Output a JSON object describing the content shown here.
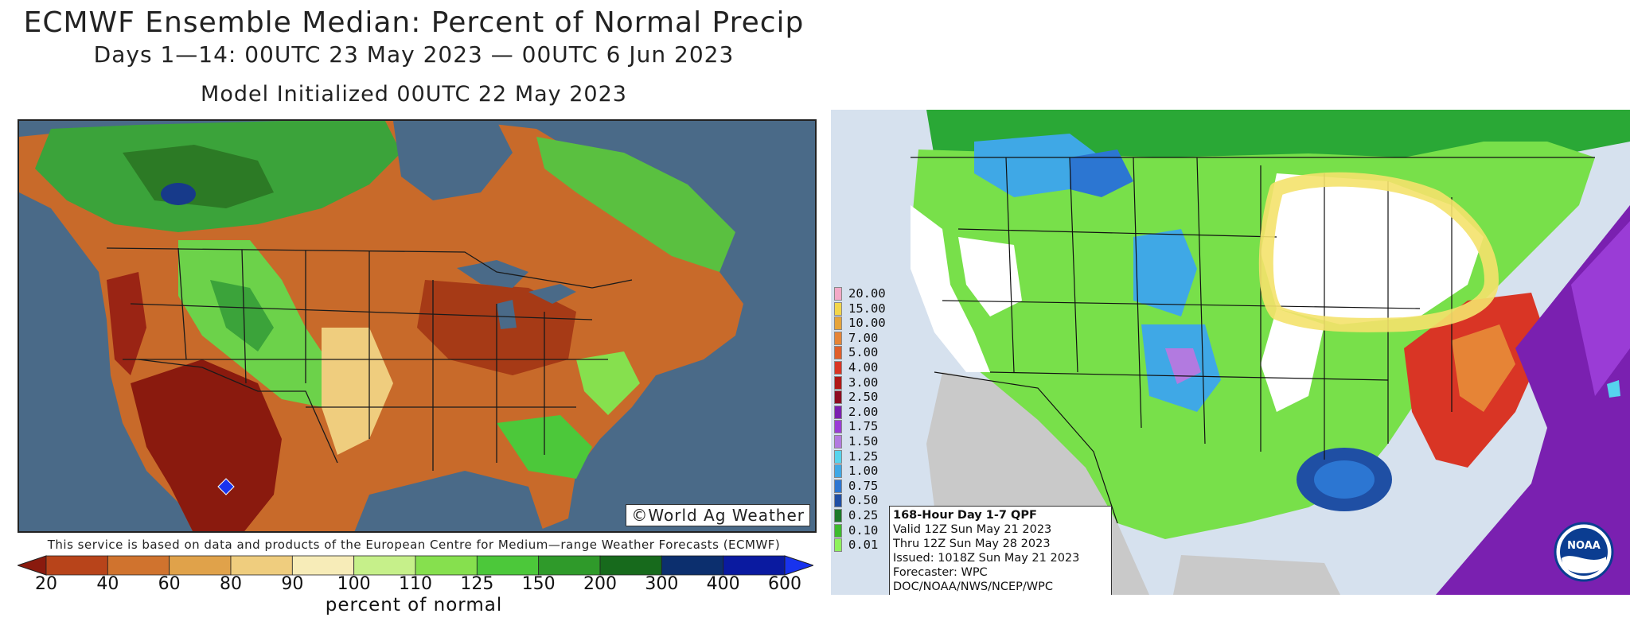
{
  "left_panel": {
    "title": "ECMWF Ensemble Median: Percent of Normal Precip",
    "subtitle": "Days 1—14: 00UTC 23 May 2023 — 00UTC 6 Jun 2023",
    "init": "Model Initialized 00UTC 22 May 2023",
    "credit": "©World Ag Weather",
    "service_note": "This service is based on data and products of the European Centre for Medium—range Weather Forecasts (ECMWF)",
    "colorbar": {
      "ticks": [
        "20",
        "40",
        "60",
        "80",
        "90",
        "100",
        "110",
        "125",
        "150",
        "200",
        "300",
        "400",
        "600"
      ],
      "colors": [
        "#8a1a0e",
        "#b8441a",
        "#d0732e",
        "#e0a24a",
        "#efcd7e",
        "#f7ecb8",
        "#c6f08a",
        "#86e04e",
        "#4cc83a",
        "#2f9a2a",
        "#176a1c",
        "#0c2f6e",
        "#0a1aa0",
        "#1833ee"
      ],
      "label": "percent of normal"
    }
  },
  "right_panel": {
    "legend": [
      {
        "value": "20.00",
        "color": "#f3a9c7"
      },
      {
        "value": "15.00",
        "color": "#f3d64a"
      },
      {
        "value": "10.00",
        "color": "#e6a43a"
      },
      {
        "value": "7.00",
        "color": "#e68436"
      },
      {
        "value": "5.00",
        "color": "#e05e2a"
      },
      {
        "value": "4.00",
        "color": "#d93525"
      },
      {
        "value": "3.00",
        "color": "#b01818"
      },
      {
        "value": "2.50",
        "color": "#8e0c22"
      },
      {
        "value": "2.00",
        "color": "#7a20b0"
      },
      {
        "value": "1.75",
        "color": "#9a3cd6"
      },
      {
        "value": "1.50",
        "color": "#b27ae0"
      },
      {
        "value": "1.25",
        "color": "#56d4ee"
      },
      {
        "value": "1.00",
        "color": "#3fa8e6"
      },
      {
        "value": "0.75",
        "color": "#2c76d2"
      },
      {
        "value": "0.50",
        "color": "#1f4fa4"
      },
      {
        "value": "0.25",
        "color": "#1c7a2a"
      },
      {
        "value": "0.10",
        "color": "#3dbb2e"
      },
      {
        "value": "0.01",
        "color": "#8ef25e"
      }
    ],
    "info": {
      "header": "168-Hour Day 1-7 QPF",
      "valid": "Valid 12Z Sun May 21 2023",
      "thru": "Thru 12Z Sun May 28 2023",
      "issued": "Issued: 1018Z Sun May 21 2023",
      "forecaster": "Forecaster: WPC",
      "org": "DOC/NOAA/NWS/NCEP/WPC"
    },
    "logo_text": "NOAA"
  }
}
